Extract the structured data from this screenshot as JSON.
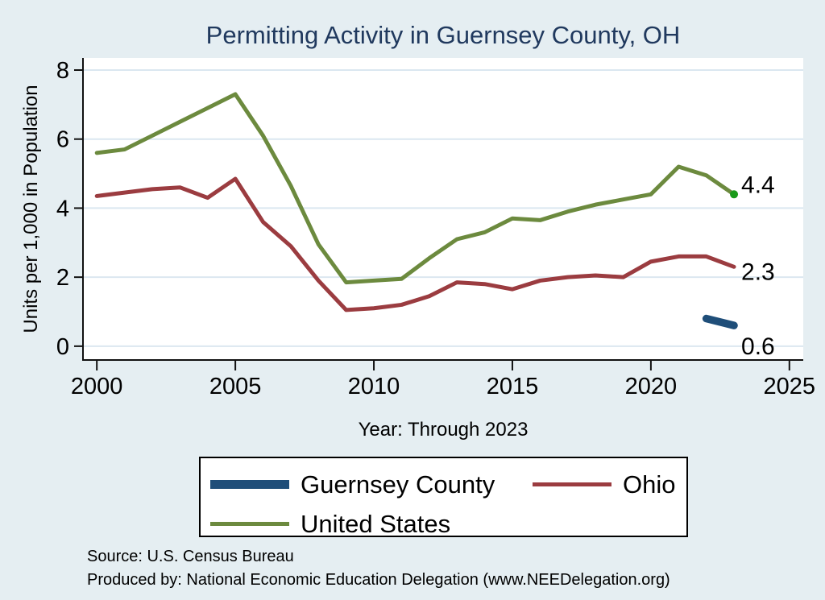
{
  "chart_data": {
    "type": "line",
    "title": "Permitting Activity in Guernsey County, OH",
    "xlabel": "Year: Through 2023",
    "ylabel": "Units per 1,000 in Population",
    "x": [
      2000,
      2001,
      2002,
      2003,
      2004,
      2005,
      2006,
      2007,
      2008,
      2009,
      2010,
      2011,
      2012,
      2013,
      2014,
      2015,
      2016,
      2017,
      2018,
      2019,
      2020,
      2021,
      2022,
      2023
    ],
    "series": [
      {
        "name": "Guernsey County",
        "color": "#1f4e79",
        "line_width": 9.5,
        "values": [
          null,
          null,
          null,
          null,
          null,
          null,
          null,
          null,
          null,
          null,
          null,
          null,
          null,
          null,
          null,
          null,
          null,
          null,
          null,
          null,
          null,
          null,
          0.8,
          0.6
        ],
        "end_label": "0.6",
        "end_label_dy": 36
      },
      {
        "name": "Ohio",
        "color": "#9b3c40",
        "line_width": 5,
        "values": [
          4.35,
          4.45,
          4.55,
          4.6,
          4.3,
          4.85,
          3.6,
          2.9,
          1.9,
          1.05,
          1.1,
          1.2,
          1.45,
          1.85,
          1.8,
          1.65,
          1.9,
          2.0,
          2.05,
          2.0,
          2.45,
          2.6,
          2.6,
          2.3
        ],
        "end_label": "2.3",
        "end_label_dy": 16
      },
      {
        "name": "United States",
        "color": "#6c8a3e",
        "line_width": 5,
        "values": [
          5.6,
          5.7,
          6.1,
          6.5,
          6.9,
          7.3,
          6.1,
          4.65,
          2.95,
          1.85,
          1.9,
          1.95,
          2.55,
          3.1,
          3.3,
          3.7,
          3.65,
          3.9,
          4.1,
          4.25,
          4.4,
          5.2,
          4.95,
          4.4
        ],
        "end_label": "4.4",
        "end_label_dy": -2,
        "end_marker_color": "#1a9a1a"
      }
    ],
    "xlim": [
      1999.5,
      2025.5
    ],
    "ylim": [
      -0.4,
      8.35
    ],
    "xticks": [
      2000,
      2005,
      2010,
      2015,
      2020,
      2025
    ],
    "yticks": [
      0,
      2,
      4,
      6,
      8
    ],
    "grid": "horizontal",
    "legend_position": "bottom"
  },
  "colors": {
    "background": "#e5eef2",
    "plot_background": "#ffffff",
    "gridline": "#dbe7f0",
    "axis": "#111111",
    "title": "#20395e"
  },
  "footer": {
    "source": "Source: U.S. Census Bureau",
    "produced_by": "Produced by: National Economic Education Delegation (www.NEEDelegation.org)"
  }
}
